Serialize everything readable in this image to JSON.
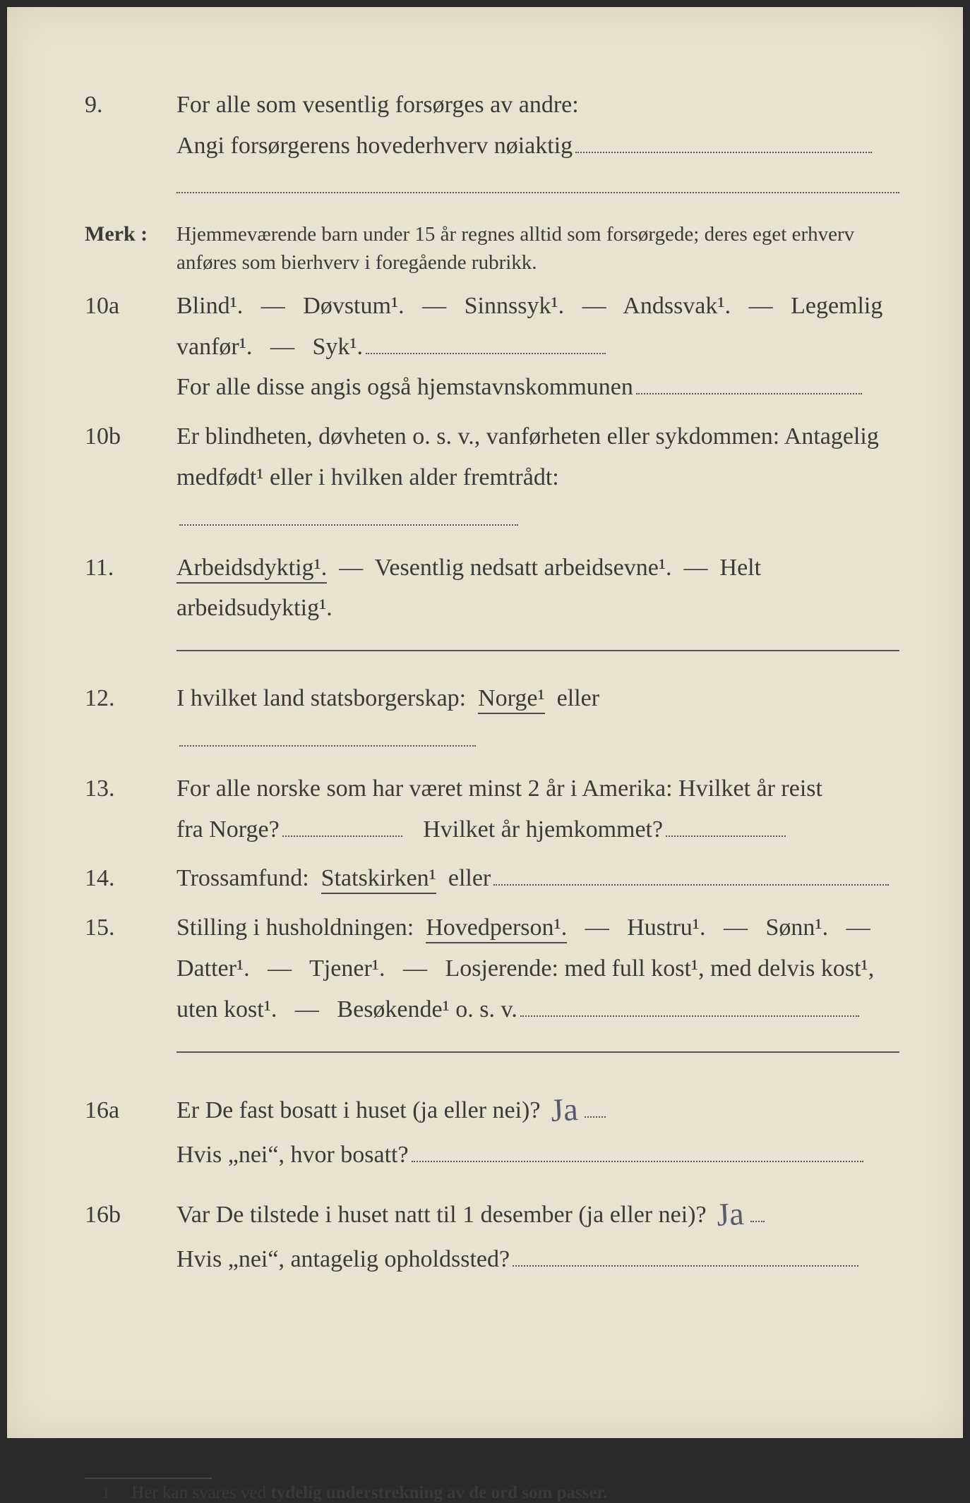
{
  "page": {
    "background_color": "#e8e2d0",
    "text_color": "#3a3a38",
    "handwriting_color": "#5a5a70",
    "dot_color": "#555555",
    "font_family": "Times New Roman",
    "body_fontsize_pt": 17,
    "merk_fontsize_pt": 14
  },
  "q9": {
    "num": "9.",
    "line1": "For alle som vesentlig forsørges av andre:",
    "line2_pre": "Angi forsørgerens hovederhverv nøiaktig"
  },
  "merk": {
    "label": "Merk :",
    "text": "Hjemmeværende barn under 15 år regnes alltid som forsørgede; deres eget erhverv anføres som bierhverv i foregående rubrikk."
  },
  "q10a": {
    "num": "10a",
    "opts": [
      "Blind¹.",
      "Døvstum¹.",
      "Sinnssyk¹.",
      "Andssvak¹.",
      "Legemlig"
    ],
    "line2_pre": "vanfør¹.",
    "line2_opt": "Syk¹.",
    "line3": "For alle disse angis også hjemstavnskommunen"
  },
  "q10b": {
    "num": "10b",
    "line1": "Er blindheten, døvheten o. s. v., vanførheten eller sykdommen: Antagelig",
    "line2": "medfødt¹ eller i hvilken alder fremtrådt:"
  },
  "q11": {
    "num": "11.",
    "opt1": "Arbeidsdyktig¹.",
    "opt2": "Vesentlig nedsatt arbeidsevne¹.",
    "opt3": "Helt arbeidsudyktig¹."
  },
  "q12": {
    "num": "12.",
    "pre": "I hvilket land statsborgerskap:",
    "opt": "Norge¹",
    "post": "eller"
  },
  "q13": {
    "num": "13.",
    "line1": "For alle norske som har været minst 2 år i Amerika: Hvilket år reist",
    "line2a": "fra Norge?",
    "line2b": "Hvilket år hjemkommet?"
  },
  "q14": {
    "num": "14.",
    "pre": "Trossamfund:",
    "opt": "Statskirken¹",
    "post": "eller"
  },
  "q15": {
    "num": "15.",
    "pre": "Stilling i husholdningen:",
    "opt1": "Hovedperson¹.",
    "opts_rest": [
      "Hustru¹.",
      "Sønn¹."
    ],
    "line2_opts": [
      "Datter¹.",
      "Tjener¹."
    ],
    "line2_post": "Losjerende: med full kost¹, med delvis kost¹,",
    "line3_pre": "uten kost¹.",
    "line3_opt": "Besøkende¹ o. s. v."
  },
  "q16a": {
    "num": "16a",
    "line1": "Er De fast bosatt i huset (ja eller nei)?",
    "answer": "Ja",
    "line2": "Hvis „nei“, hvor bosatt?"
  },
  "q16b": {
    "num": "16b",
    "line1": "Var De tilstede i huset natt til 1 desember (ja eller nei)?",
    "answer": "Ja",
    "line2": "Hvis „nei“, antagelig opholdssted?"
  },
  "footnote": {
    "num": "1",
    "pre": "Her kan svares ved ",
    "bold": "tydelig understrekning av de ord som passer."
  }
}
